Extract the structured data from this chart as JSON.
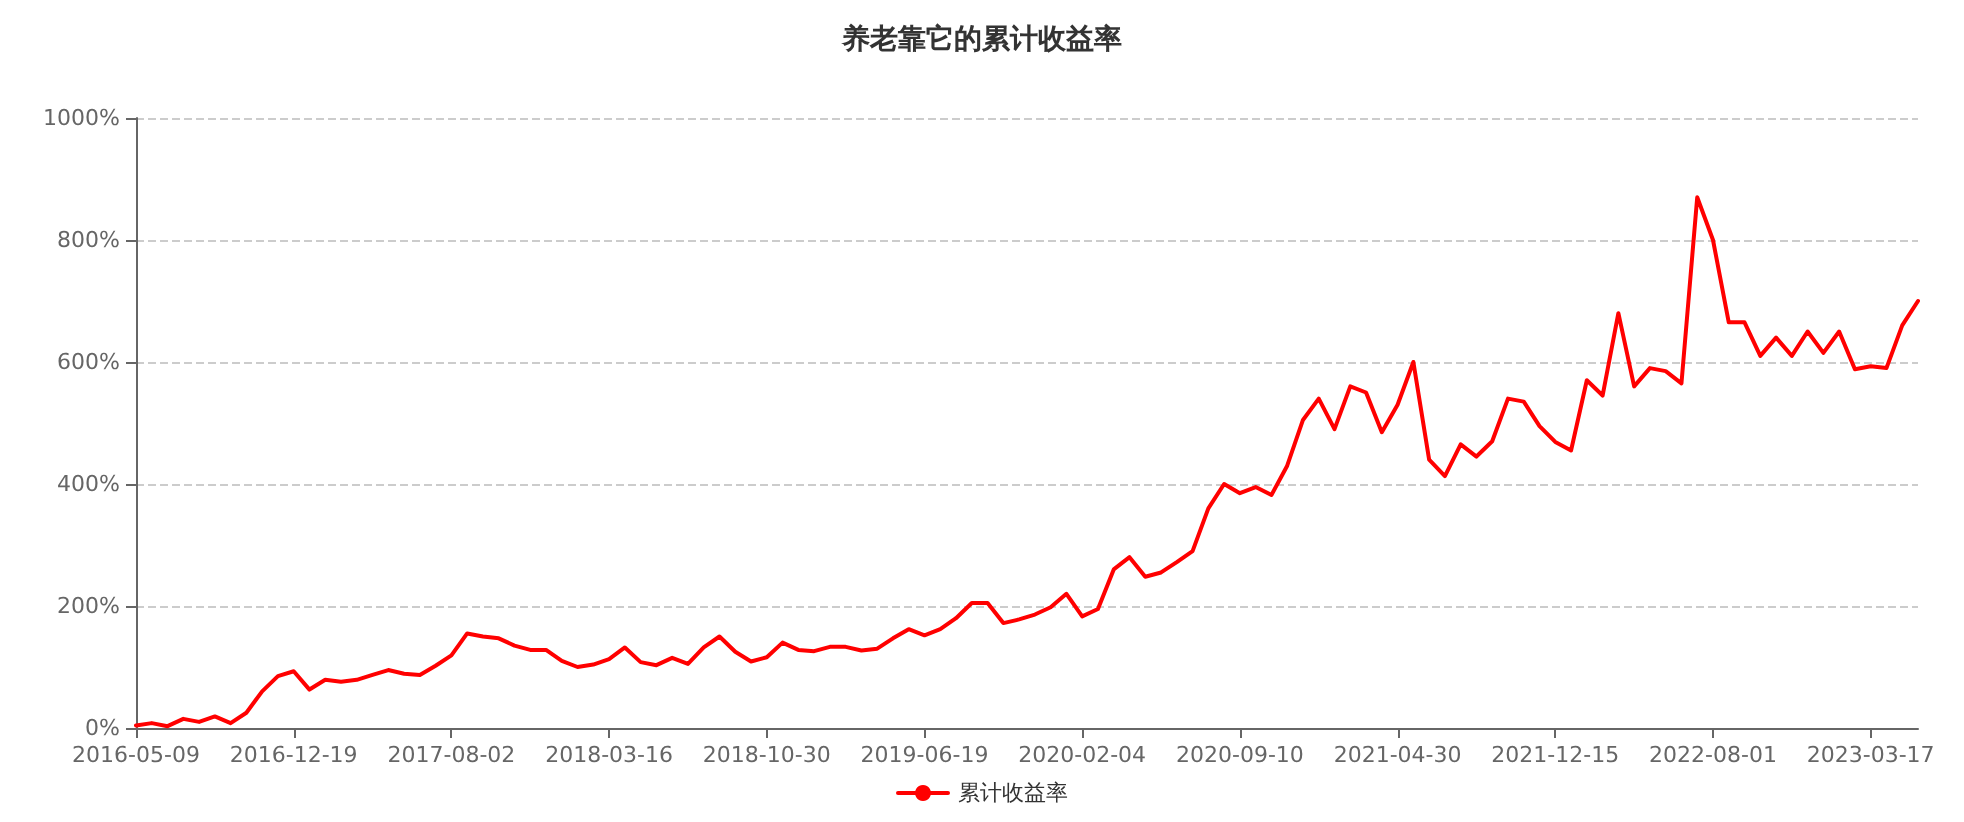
{
  "chart_data": {
    "type": "line",
    "title": "养老靠它的累计收益率",
    "categories": [
      "2016-05-09",
      null,
      null,
      null,
      null,
      null,
      null,
      null,
      null,
      null,
      "2016-12-19",
      null,
      null,
      null,
      null,
      null,
      null,
      null,
      null,
      null,
      "2017-08-02",
      null,
      null,
      null,
      null,
      null,
      null,
      null,
      null,
      null,
      "2018-03-16",
      null,
      null,
      null,
      null,
      null,
      null,
      null,
      null,
      null,
      "2018-10-30",
      null,
      null,
      null,
      null,
      null,
      null,
      null,
      null,
      null,
      "2019-06-19",
      null,
      null,
      null,
      null,
      null,
      null,
      null,
      null,
      null,
      "2020-02-04",
      null,
      null,
      null,
      null,
      null,
      null,
      null,
      null,
      null,
      "2020-09-10",
      null,
      null,
      null,
      null,
      null,
      null,
      null,
      null,
      null,
      "2021-04-30",
      null,
      null,
      null,
      null,
      null,
      null,
      null,
      null,
      null,
      "2021-12-15",
      null,
      null,
      null,
      null,
      null,
      null,
      null,
      null,
      null,
      "2022-08-01",
      null,
      null,
      null,
      null,
      null,
      null,
      null,
      null,
      null,
      "2023-03-17",
      null,
      null,
      null
    ],
    "series": [
      {
        "name": "累计收益率",
        "color": "#ff0000",
        "values": [
          4,
          8,
          3,
          15,
          10,
          19,
          8,
          25,
          60,
          85,
          93,
          63,
          79,
          76,
          79,
          87,
          95,
          89,
          87,
          102,
          119,
          155,
          150,
          147,
          135,
          128,
          128,
          110,
          100,
          104,
          113,
          132,
          108,
          103,
          115,
          105,
          132,
          150,
          125,
          109,
          116,
          140,
          128,
          126,
          133,
          133,
          127,
          130,
          147,
          162,
          152,
          162,
          180,
          205,
          205,
          172,
          178,
          186,
          198,
          220,
          183,
          195,
          260,
          280,
          248,
          255,
          272,
          290,
          360,
          400,
          385,
          395,
          382,
          430,
          505,
          540,
          490,
          560,
          550,
          485,
          530,
          600,
          440,
          413,
          465,
          445,
          470,
          540,
          535,
          495,
          469,
          455,
          570,
          545,
          680,
          560,
          590,
          585,
          565,
          870,
          800,
          665,
          665,
          610,
          640,
          610,
          650,
          615,
          650,
          588,
          593,
          590,
          660,
          700
        ]
      }
    ],
    "ylim": [
      0,
      1000
    ],
    "yticks": [
      {
        "value": 0,
        "label": "0%"
      },
      {
        "value": 200,
        "label": "200%"
      },
      {
        "value": 400,
        "label": "400%"
      },
      {
        "value": 600,
        "label": "600%"
      },
      {
        "value": 800,
        "label": "800%"
      },
      {
        "value": 1000,
        "label": "1000%"
      }
    ],
    "grid": "y",
    "legend": "bottom",
    "line_style": "solid"
  }
}
